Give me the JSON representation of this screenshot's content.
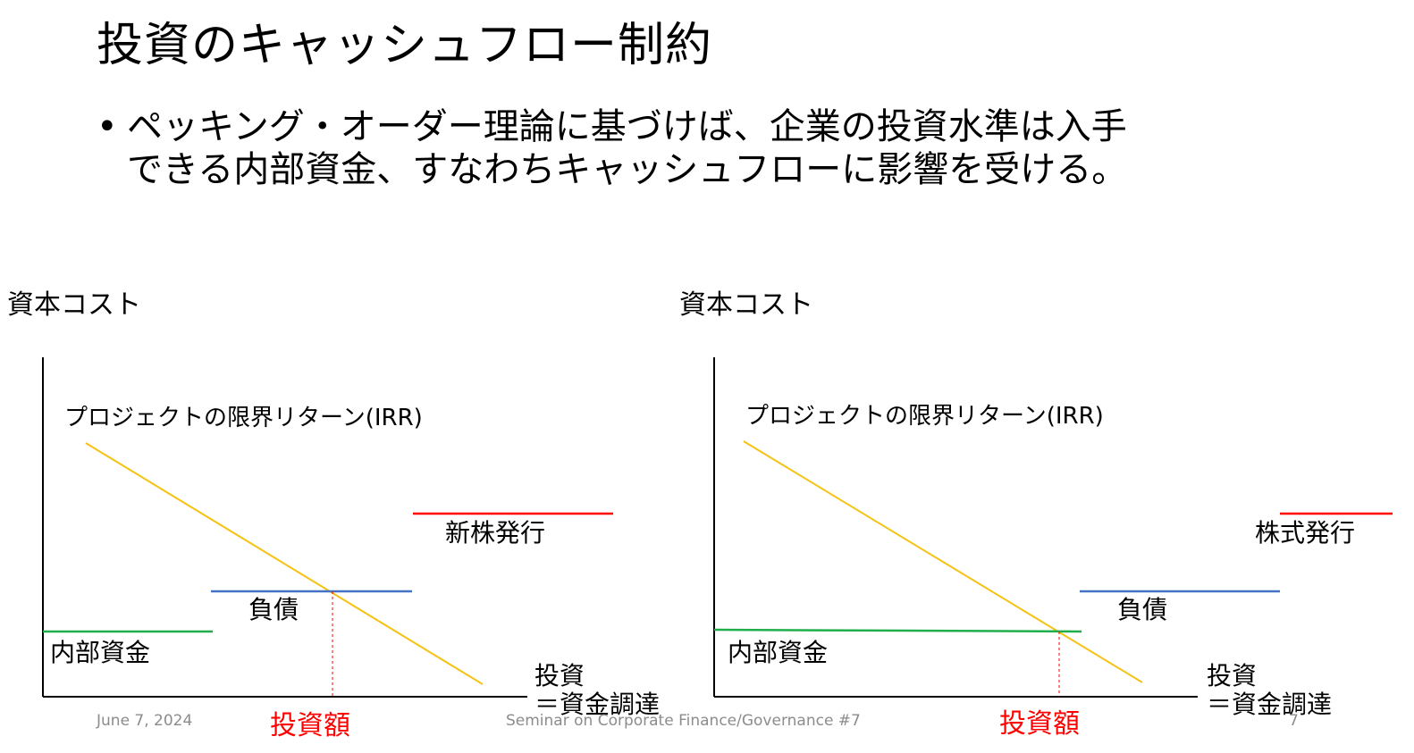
{
  "slide": {
    "title": "投資のキャッシュフロー制約",
    "bullet_line1": "ペッキング・オーダー理論に基づけば、企業の投資水準は入手",
    "bullet_line2": "できる内部資金、すなわちキャッシュフローに影響を受ける。"
  },
  "left_diagram": {
    "y_label": "資本コスト",
    "curve_label": "プロジェクトの限界リターン(IRR)",
    "tier_internal": "内部資金",
    "tier_debt": "負債",
    "tier_equity": "新株発行",
    "x_label_line1": "投資",
    "x_label_line2": "＝資金調達",
    "investment_label": "投資額"
  },
  "right_diagram": {
    "y_label": "資本コスト",
    "curve_label": "プロジェクトの限界リターン(IRR)",
    "tier_internal": "内部資金",
    "tier_debt": "負債",
    "tier_equity": "株式発行",
    "x_label_line1": "投資",
    "x_label_line2": "＝資金調達",
    "investment_label": "投資額"
  },
  "footer": {
    "date": "June 7, 2024",
    "center": "Seminar on Corporate Finance/Governance #7",
    "page": "7"
  },
  "colors": {
    "irr_line": "#f5c211",
    "internal_funds": "#1fae4b",
    "debt": "#4472c4",
    "equity": "#ff0000",
    "investment_marker": "#ff0000",
    "axes": "#000000"
  }
}
